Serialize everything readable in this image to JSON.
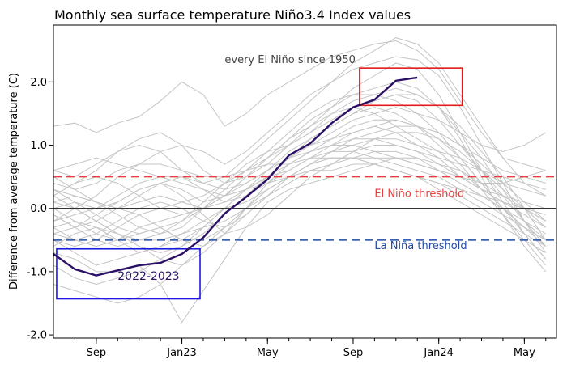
{
  "chart_data": {
    "type": "line",
    "title": "Monthly sea surface temperature Niño3.4 Index values",
    "xlabel": "",
    "ylabel": "Difference from average temperature (C)",
    "ylim": [
      -2.05,
      2.9
    ],
    "xlim": [
      0,
      23.5
    ],
    "month_ticks": [
      1,
      2,
      3,
      4,
      5,
      6,
      7,
      8,
      9,
      10,
      11,
      12,
      13,
      14,
      15,
      16,
      17,
      18,
      19,
      20,
      21,
      22,
      23
    ],
    "x_tick_labels": [
      {
        "x": 2,
        "label": "Sep"
      },
      {
        "x": 6,
        "label": "Jan23"
      },
      {
        "x": 10,
        "label": "May"
      },
      {
        "x": 14,
        "label": "Sep"
      },
      {
        "x": 18,
        "label": "Jan24"
      },
      {
        "x": 22,
        "label": "May"
      }
    ],
    "y_ticks": [
      {
        "y": -2,
        "label": "-2.0"
      },
      {
        "y": -1,
        "label": "-1.0"
      },
      {
        "y": 0,
        "label": "0.0"
      },
      {
        "y": 1,
        "label": "1.0"
      },
      {
        "y": 2,
        "label": "2.0"
      }
    ],
    "thresholds": [
      {
        "y": 0.5,
        "label": "El Niño threshold",
        "color": "#e8413c",
        "label_x": 15,
        "label_y": 0.18
      },
      {
        "y": -0.5,
        "label": "La Niña threshold",
        "color": "#1f4aa8",
        "label_x": 15,
        "label_y": -0.64
      }
    ],
    "zero_line_color": "#333333",
    "background_label": {
      "text": "every El Niño since 1950",
      "x": 8,
      "y": 2.3,
      "color": "#444444"
    },
    "highlight_series": {
      "name": "2022-2023",
      "color": "#2b1166",
      "x": [
        0,
        1,
        2,
        3,
        4,
        5,
        6,
        7,
        8,
        9,
        10,
        11,
        12,
        13,
        14,
        15,
        16,
        17
      ],
      "values": [
        -0.72,
        -0.96,
        -1.06,
        -0.98,
        -0.9,
        -0.86,
        -0.72,
        -0.46,
        -0.08,
        0.18,
        0.46,
        0.84,
        1.03,
        1.35,
        1.6,
        1.72,
        2.02,
        2.07
      ]
    },
    "annotations": [
      {
        "label": "2022-2023",
        "x0": 0.15,
        "x1": 6.85,
        "y0": -1.43,
        "y1": -0.64,
        "color": "#1a1ae6",
        "label_x": 3,
        "label_y": -1.13,
        "label_color": "#2b1166"
      },
      {
        "label": "",
        "x0": 14.3,
        "x1": 19.1,
        "y0": 1.63,
        "y1": 2.22,
        "color": "#e31a1c"
      }
    ],
    "background_series_color": "#c4c4c4",
    "background_series": [
      {
        "values": [
          1.3,
          1.35,
          1.2,
          1.35,
          1.45,
          1.7,
          2.0,
          1.8,
          1.3,
          1.5,
          1.8,
          2.0,
          2.2,
          2.4,
          2.5,
          2.6,
          2.65,
          2.5,
          2.2,
          1.7,
          1.2,
          0.8,
          0.7,
          0.6
        ]
      },
      {
        "values": [
          0.6,
          0.5,
          0.7,
          0.9,
          1.0,
          0.9,
          0.6,
          0.4,
          0.5,
          0.8,
          1.1,
          1.4,
          1.7,
          2.0,
          2.3,
          2.5,
          2.7,
          2.6,
          2.3,
          1.8,
          1.3,
          0.8,
          0.4,
          0.2
        ]
      },
      {
        "values": [
          0.2,
          0.4,
          0.6,
          0.9,
          1.1,
          1.2,
          1.0,
          0.6,
          0.4,
          0.5,
          0.7,
          1.0,
          1.3,
          1.6,
          1.9,
          2.1,
          2.3,
          2.2,
          1.8,
          1.2,
          0.6,
          0.1,
          -0.4,
          -0.8
        ]
      },
      {
        "values": [
          -0.2,
          0.0,
          0.2,
          0.5,
          0.7,
          0.9,
          1.0,
          0.9,
          0.7,
          0.9,
          1.2,
          1.5,
          1.8,
          2.0,
          2.2,
          2.3,
          2.4,
          2.35,
          2.1,
          1.6,
          1.0,
          0.4,
          -0.2,
          -0.7
        ]
      },
      {
        "values": [
          -0.4,
          -0.3,
          -0.1,
          0.1,
          0.3,
          0.4,
          0.3,
          0.1,
          0.2,
          0.5,
          0.8,
          1.1,
          1.4,
          1.6,
          1.8,
          1.9,
          2.0,
          1.9,
          1.6,
          1.1,
          0.5,
          -0.1,
          -0.6,
          -1.0
        ]
      },
      {
        "values": [
          0.3,
          0.2,
          0.1,
          -0.1,
          -0.3,
          -0.4,
          -0.3,
          0.0,
          0.3,
          0.6,
          0.9,
          1.2,
          1.5,
          1.7,
          1.8,
          1.8,
          1.7,
          1.5,
          1.2,
          0.8,
          0.4,
          0.0,
          -0.3,
          -0.5
        ]
      },
      {
        "values": [
          -0.1,
          -0.3,
          -0.5,
          -0.6,
          -0.5,
          -0.4,
          -0.2,
          0.1,
          0.4,
          0.7,
          0.9,
          1.0,
          1.2,
          1.5,
          1.6,
          1.5,
          1.3,
          1.1,
          0.9,
          0.6,
          0.3,
          0.1,
          0.0,
          -0.1
        ]
      },
      {
        "values": [
          0.5,
          0.3,
          0.1,
          0.0,
          0.2,
          0.4,
          0.5,
          0.4,
          0.3,
          0.4,
          0.6,
          0.8,
          1.0,
          1.1,
          1.2,
          1.3,
          1.2,
          1.0,
          0.8,
          0.5,
          0.3,
          0.2,
          0.1,
          0.0
        ]
      },
      {
        "values": [
          -0.5,
          -0.7,
          -0.9,
          -0.8,
          -0.7,
          -0.6,
          -0.5,
          -0.3,
          0.0,
          0.3,
          0.5,
          0.7,
          0.9,
          1.0,
          1.1,
          1.1,
          1.0,
          0.9,
          0.7,
          0.5,
          0.3,
          0.1,
          -0.1,
          -0.3
        ]
      },
      {
        "values": [
          0.0,
          0.1,
          -0.1,
          -0.3,
          -0.4,
          -0.3,
          -0.2,
          0.0,
          0.2,
          0.4,
          0.6,
          0.8,
          0.9,
          1.0,
          1.0,
          0.9,
          0.8,
          0.7,
          0.6,
          0.4,
          0.2,
          0.0,
          -0.2,
          -0.4
        ]
      },
      {
        "values": [
          -0.9,
          -1.1,
          -1.2,
          -1.1,
          -1.0,
          -0.8,
          -0.6,
          -0.3,
          0.0,
          0.3,
          0.5,
          0.6,
          0.8,
          0.9,
          0.9,
          0.8,
          0.7,
          0.6,
          0.5,
          0.3,
          0.1,
          -0.1,
          -0.3,
          -0.5
        ]
      },
      {
        "values": [
          0.4,
          0.3,
          0.4,
          0.6,
          0.7,
          0.7,
          0.6,
          0.5,
          0.5,
          0.6,
          0.7,
          0.7,
          0.8,
          0.8,
          0.8,
          0.7,
          0.6,
          0.5,
          0.4,
          0.3,
          0.2,
          0.1,
          0.0,
          -0.2
        ]
      },
      {
        "values": [
          -0.3,
          -0.5,
          -0.6,
          -0.5,
          -0.3,
          -0.2,
          -0.1,
          0.0,
          0.2,
          0.3,
          0.4,
          0.5,
          0.6,
          0.6,
          0.7,
          0.7,
          0.6,
          0.5,
          0.4,
          0.2,
          0.0,
          -0.2,
          -0.4,
          -0.6
        ]
      },
      {
        "values": [
          -1.2,
          -1.3,
          -1.4,
          -1.5,
          -1.4,
          -1.2,
          -0.9,
          -0.6,
          -0.3,
          0.0,
          0.3,
          0.5,
          0.7,
          0.8,
          0.8,
          0.7,
          0.6,
          0.5,
          0.3,
          0.1,
          -0.1,
          -0.3,
          -0.5,
          -0.7
        ]
      },
      {
        "values": [
          0.1,
          0.0,
          -0.2,
          -0.4,
          -0.6,
          -0.8,
          -0.9,
          -0.7,
          -0.4,
          0.0,
          0.4,
          0.7,
          0.9,
          1.1,
          1.3,
          1.4,
          1.4,
          1.3,
          1.1,
          0.8,
          0.4,
          0.0,
          -0.4,
          -0.8
        ]
      },
      {
        "values": [
          -0.6,
          -0.4,
          -0.3,
          -0.4,
          -0.6,
          -0.7,
          -0.6,
          -0.4,
          -0.1,
          0.2,
          0.5,
          0.8,
          1.1,
          1.3,
          1.5,
          1.6,
          1.5,
          1.3,
          1.0,
          0.7,
          0.3,
          -0.1,
          -0.5,
          -0.9
        ]
      },
      {
        "values": [
          0.2,
          0.4,
          0.5,
          0.4,
          0.2,
          0.0,
          -0.1,
          0.0,
          0.2,
          0.5,
          0.8,
          1.1,
          1.3,
          1.5,
          1.7,
          1.8,
          1.9,
          1.8,
          1.6,
          1.2,
          0.8,
          0.3,
          -0.2,
          -0.6
        ]
      },
      {
        "values": [
          -0.2,
          -0.1,
          0.0,
          0.2,
          0.4,
          0.5,
          0.5,
          0.3,
          0.1,
          0.2,
          0.4,
          0.6,
          0.8,
          1.0,
          1.2,
          1.3,
          1.4,
          1.3,
          1.2,
          1.0,
          0.8,
          0.6,
          0.5,
          0.4
        ]
      },
      {
        "values": [
          -0.4,
          -0.5,
          -0.4,
          -0.2,
          0.0,
          0.1,
          0.0,
          -0.2,
          -0.3,
          -0.1,
          0.2,
          0.5,
          0.7,
          0.9,
          1.0,
          1.1,
          1.1,
          1.0,
          0.9,
          0.8,
          0.6,
          0.4,
          0.3,
          0.2
        ]
      },
      {
        "values": [
          0.0,
          -0.2,
          -0.4,
          -0.5,
          -0.4,
          -0.3,
          -0.5,
          -0.6,
          -0.4,
          -0.1,
          0.2,
          0.4,
          0.6,
          0.7,
          0.9,
          1.0,
          1.0,
          0.9,
          0.8,
          0.7,
          0.6,
          0.5,
          0.4,
          0.3
        ]
      },
      {
        "values": [
          0.1,
          0.2,
          0.1,
          0.0,
          -0.1,
          -0.3,
          -0.5,
          -0.5,
          -0.3,
          0.0,
          0.3,
          0.5,
          0.7,
          0.8,
          0.8,
          0.9,
          0.9,
          0.8,
          0.6,
          0.4,
          0.2,
          0.0,
          -0.3,
          -0.6
        ]
      },
      {
        "values": [
          -0.7,
          -0.8,
          -1.0,
          -1.0,
          -0.9,
          -1.2,
          -1.8,
          -1.3,
          -0.8,
          -0.3,
          0.1,
          0.3,
          0.4,
          0.5,
          0.6,
          0.7,
          0.8,
          0.8,
          0.7,
          0.6,
          0.4,
          0.2,
          0.0,
          -0.2
        ]
      },
      {
        "values": [
          0.3,
          0.1,
          0.0,
          0.1,
          0.3,
          0.4,
          0.2,
          -0.1,
          -0.4,
          -0.3,
          -0.1,
          0.2,
          0.5,
          0.7,
          0.9,
          1.1,
          1.2,
          1.2,
          1.1,
          0.9,
          0.6,
          0.3,
          0.0,
          -0.3
        ]
      },
      {
        "values": [
          -0.3,
          -0.2,
          -0.3,
          -0.5,
          -0.7,
          -0.6,
          -0.4,
          -0.2,
          0.0,
          0.1,
          0.3,
          0.5,
          0.7,
          0.9,
          1.1,
          1.2,
          1.3,
          1.3,
          1.2,
          1.0,
          0.7,
          0.4,
          0.1,
          -0.2
        ]
      },
      {
        "values": [
          0.6,
          0.7,
          0.8,
          0.7,
          0.6,
          0.5,
          0.4,
          0.3,
          0.2,
          0.3,
          0.5,
          0.8,
          1.0,
          1.2,
          1.4,
          1.5,
          1.6,
          1.5,
          1.4,
          1.2,
          1.0,
          0.9,
          1.0,
          1.2
        ]
      },
      {
        "values": [
          -0.1,
          -0.3,
          -0.2,
          0.0,
          0.1,
          0.2,
          0.1,
          0.0,
          0.1,
          0.3,
          0.6,
          0.9,
          1.1,
          1.3,
          1.5,
          1.7,
          1.8,
          1.8,
          1.6,
          1.3,
          0.9,
          0.5,
          0.0,
          -0.5
        ]
      },
      {
        "values": [
          0.2,
          0.0,
          -0.2,
          -0.4,
          -0.5,
          -0.5,
          -0.4,
          -0.3,
          -0.2,
          0.0,
          0.2,
          0.4,
          0.6,
          0.7,
          0.8,
          0.8,
          0.8,
          0.7,
          0.6,
          0.5,
          0.4,
          0.4,
          0.5,
          0.6
        ]
      },
      {
        "values": [
          -0.5,
          -0.6,
          -0.5,
          -0.3,
          -0.1,
          0.0,
          0.1,
          0.2,
          0.4,
          0.6,
          0.8,
          1.0,
          1.2,
          1.4,
          1.6,
          1.7,
          1.8,
          1.7,
          1.4,
          1.0,
          0.6,
          0.2,
          -0.2,
          -0.5
        ]
      }
    ]
  }
}
